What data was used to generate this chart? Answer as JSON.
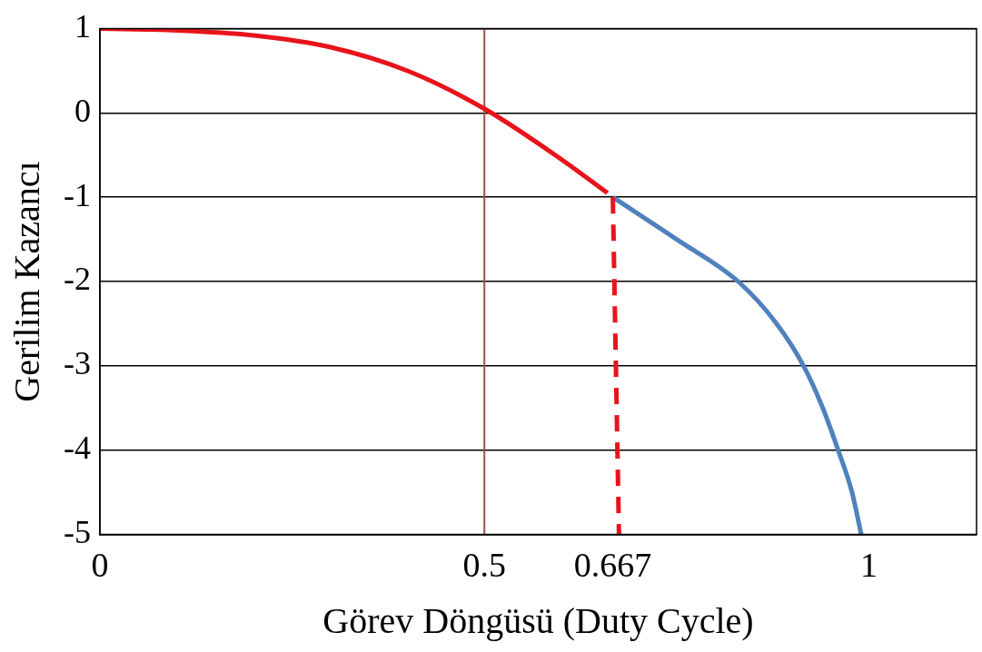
{
  "chart_data": {
    "type": "line",
    "xlabel": "Görev Döngüsü (Duty Cycle)",
    "ylabel": "Gerilim Kazancı",
    "xlim": [
      0,
      1.14
    ],
    "xticks": [
      0,
      0.5,
      0.667,
      1
    ],
    "ylim": [
      -5,
      1
    ],
    "yticks": [
      -5,
      -4,
      -3,
      -2,
      -1,
      0,
      1
    ],
    "grid": "y",
    "legend": false,
    "marker": "none",
    "series": [
      {
        "color": "#e8141b",
        "x": [
          0,
          0.1,
          0.2,
          0.3,
          0.4,
          0.5,
          0.6,
          0.66
        ],
        "values": [
          1,
          0.98,
          0.92,
          0.78,
          0.5,
          0.05,
          -0.55,
          -0.95
        ]
      },
      {
        "color": "#e8141b",
        "line_style": "dashed",
        "x": [
          0.667,
          0.675
        ],
        "values": [
          -1,
          -5
        ]
      },
      {
        "color": "#4f81bd",
        "x": [
          0.667,
          0.75,
          0.83,
          0.88,
          0.915,
          0.94,
          0.96,
          0.978,
          0.99
        ],
        "values": [
          -1,
          -1.5,
          -2,
          -2.5,
          -3,
          -3.5,
          -4,
          -4.5,
          -5
        ]
      }
    ],
    "ref_lines": [
      {
        "axis": "x",
        "value": 0.5,
        "color": "#a0504a"
      }
    ]
  }
}
